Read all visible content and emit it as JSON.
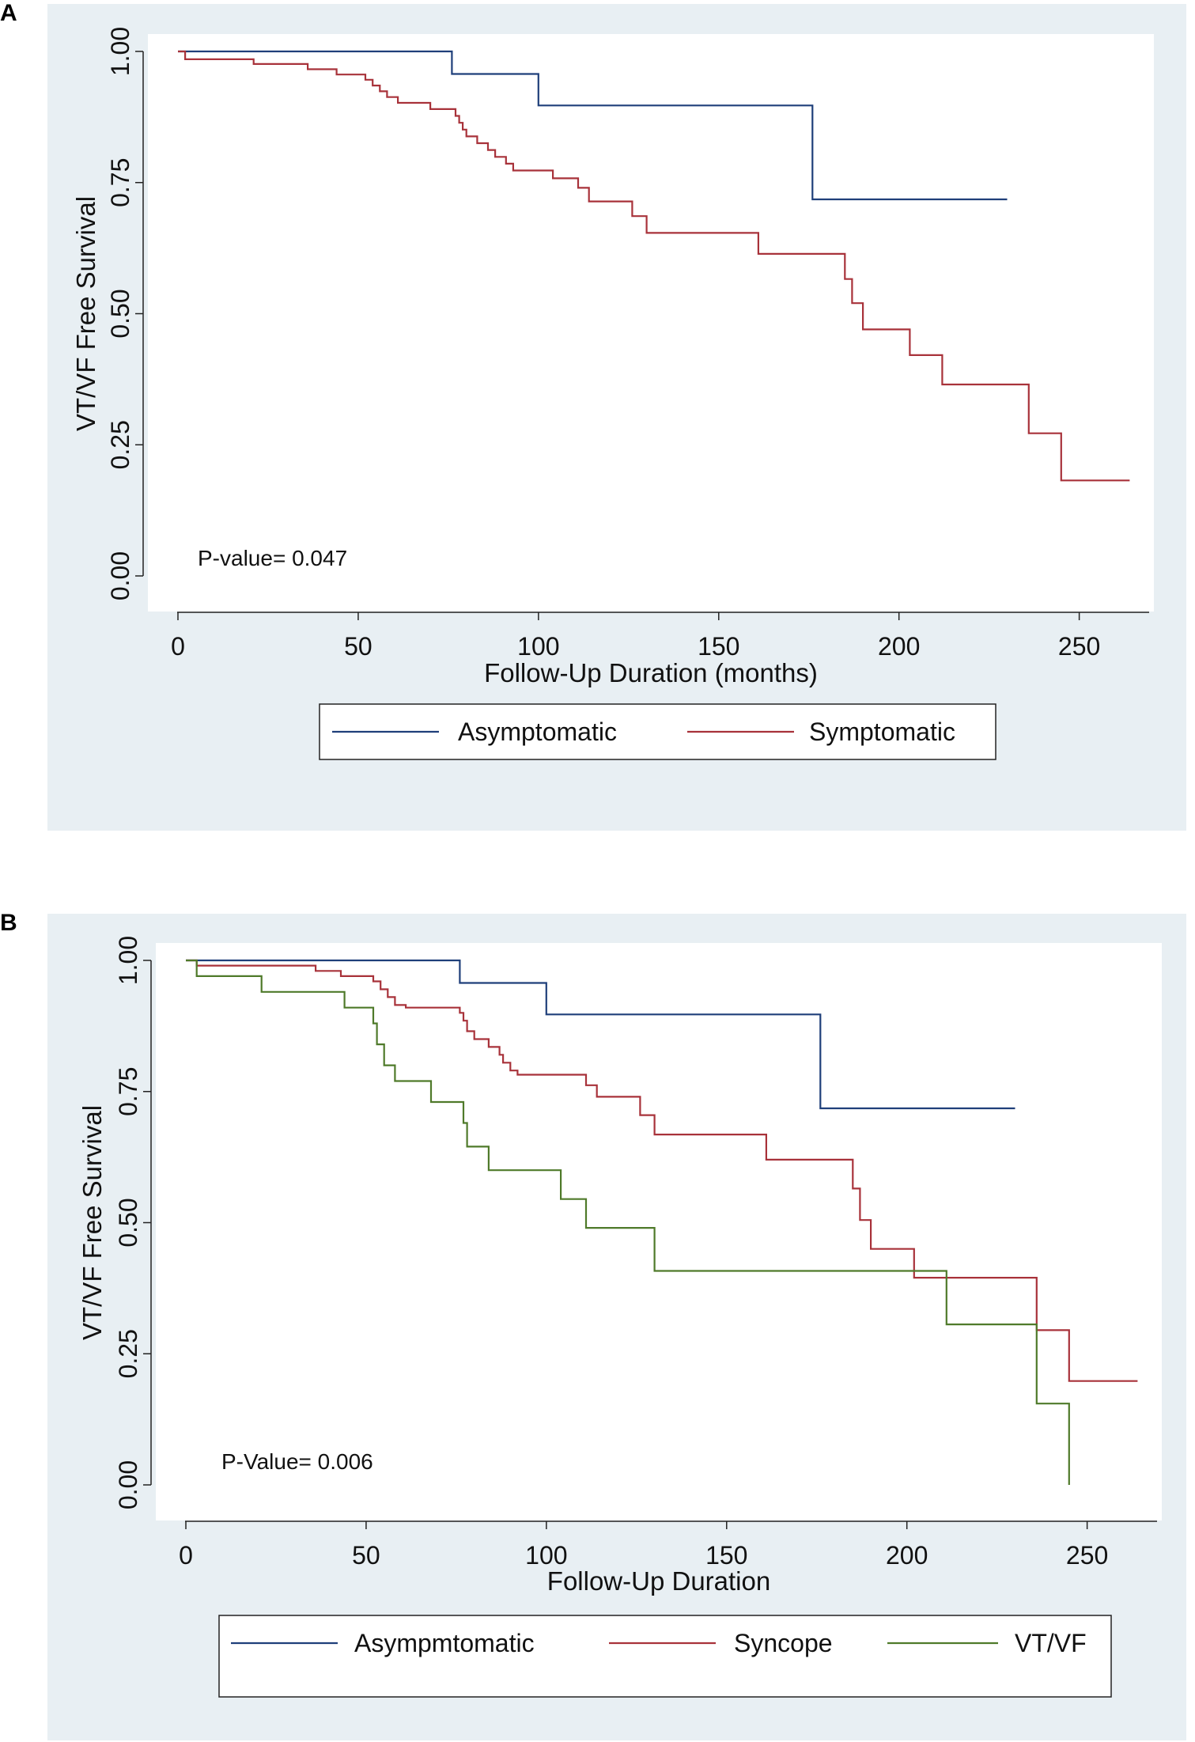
{
  "figure": {
    "panel_a_label": "A",
    "panel_b_label": "B"
  },
  "chart_data": [
    {
      "type": "line",
      "step": true,
      "panel": "A",
      "title": "",
      "xlabel": "Follow-Up Duration (months)",
      "ylabel": "VT/VF Free Survival",
      "xlim": [
        0,
        265
      ],
      "ylim": [
        0,
        1
      ],
      "xticks": [
        0,
        50,
        100,
        150,
        200,
        250
      ],
      "xtick_labels": [
        "0",
        "50",
        "100",
        "150",
        "200",
        "250"
      ],
      "yticks": [
        0,
        0.25,
        0.5,
        0.75,
        1
      ],
      "ytick_labels": [
        "0.00",
        "0.25",
        "0.50",
        "0.75",
        "1.00"
      ],
      "annotation": "P-value= 0.047",
      "legend_placement": "bottom",
      "colors": {
        "plot_bg": "#ffffff",
        "outer_bg": "#e8eff3"
      },
      "series": [
        {
          "name": "Asymptomatic",
          "color": "#1f3f7a",
          "points": [
            [
              0,
              1.0
            ],
            [
              76,
              1.0
            ],
            [
              76,
              0.957
            ],
            [
              100,
              0.957
            ],
            [
              100,
              0.897
            ],
            [
              176,
              0.897
            ],
            [
              176,
              0.718
            ],
            [
              230,
              0.718
            ]
          ]
        },
        {
          "name": "Symptomatic",
          "color": "#a8323a",
          "points": [
            [
              0,
              1.0
            ],
            [
              2,
              1.0
            ],
            [
              2,
              0.985
            ],
            [
              21,
              0.985
            ],
            [
              21,
              0.976
            ],
            [
              36,
              0.976
            ],
            [
              36,
              0.966
            ],
            [
              44,
              0.966
            ],
            [
              44,
              0.956
            ],
            [
              52,
              0.956
            ],
            [
              52,
              0.946
            ],
            [
              54,
              0.946
            ],
            [
              54,
              0.935
            ],
            [
              56,
              0.935
            ],
            [
              56,
              0.924
            ],
            [
              58,
              0.924
            ],
            [
              58,
              0.913
            ],
            [
              61,
              0.913
            ],
            [
              61,
              0.902
            ],
            [
              70,
              0.902
            ],
            [
              70,
              0.89
            ],
            [
              77,
              0.89
            ],
            [
              77,
              0.877
            ],
            [
              78,
              0.877
            ],
            [
              78,
              0.864
            ],
            [
              79,
              0.864
            ],
            [
              79,
              0.851
            ],
            [
              80,
              0.851
            ],
            [
              80,
              0.838
            ],
            [
              83,
              0.838
            ],
            [
              83,
              0.825
            ],
            [
              86,
              0.825
            ],
            [
              86,
              0.812
            ],
            [
              88,
              0.812
            ],
            [
              88,
              0.799
            ],
            [
              91,
              0.799
            ],
            [
              91,
              0.786
            ],
            [
              93,
              0.786
            ],
            [
              93,
              0.773
            ],
            [
              104,
              0.773
            ],
            [
              104,
              0.758
            ],
            [
              111,
              0.758
            ],
            [
              111,
              0.74
            ],
            [
              114,
              0.74
            ],
            [
              114,
              0.714
            ],
            [
              126,
              0.714
            ],
            [
              126,
              0.686
            ],
            [
              130,
              0.686
            ],
            [
              130,
              0.654
            ],
            [
              161,
              0.654
            ],
            [
              161,
              0.614
            ],
            [
              185,
              0.614
            ],
            [
              185,
              0.566
            ],
            [
              187,
              0.566
            ],
            [
              187,
              0.52
            ],
            [
              190,
              0.52
            ],
            [
              190,
              0.47
            ],
            [
              203,
              0.47
            ],
            [
              203,
              0.421
            ],
            [
              212,
              0.421
            ],
            [
              212,
              0.365
            ],
            [
              236,
              0.365
            ],
            [
              236,
              0.272
            ],
            [
              245,
              0.272
            ],
            [
              245,
              0.182
            ],
            [
              264,
              0.182
            ]
          ]
        }
      ]
    },
    {
      "type": "line",
      "step": true,
      "panel": "B",
      "title": "",
      "xlabel": "Follow-Up Duration",
      "ylabel": "VT/VF Free Survival",
      "xlim": [
        0,
        265
      ],
      "ylim": [
        0,
        1
      ],
      "xticks": [
        0,
        50,
        100,
        150,
        200,
        250
      ],
      "xtick_labels": [
        "0",
        "50",
        "100",
        "150",
        "200",
        "250"
      ],
      "yticks": [
        0,
        0.25,
        0.5,
        0.75,
        1
      ],
      "ytick_labels": [
        "0.00",
        "0.25",
        "0.50",
        "0.75",
        "1.00"
      ],
      "annotation": "P-Value= 0.006",
      "legend_placement": "bottom",
      "colors": {
        "plot_bg": "#ffffff",
        "outer_bg": "#e8eff3"
      },
      "series": [
        {
          "name": "Asympmtomatic",
          "color": "#1f3f7a",
          "points": [
            [
              0,
              1.0
            ],
            [
              76,
              1.0
            ],
            [
              76,
              0.957
            ],
            [
              100,
              0.957
            ],
            [
              100,
              0.897
            ],
            [
              176,
              0.897
            ],
            [
              176,
              0.718
            ],
            [
              230,
              0.718
            ]
          ]
        },
        {
          "name": "Syncope",
          "color": "#a8323a",
          "points": [
            [
              0,
              1.0
            ],
            [
              3,
              1.0
            ],
            [
              3,
              0.99
            ],
            [
              36,
              0.99
            ],
            [
              36,
              0.98
            ],
            [
              43,
              0.98
            ],
            [
              43,
              0.97
            ],
            [
              52,
              0.97
            ],
            [
              52,
              0.96
            ],
            [
              54,
              0.96
            ],
            [
              54,
              0.945
            ],
            [
              56,
              0.945
            ],
            [
              56,
              0.93
            ],
            [
              58,
              0.93
            ],
            [
              58,
              0.915
            ],
            [
              61,
              0.915
            ],
            [
              61,
              0.91
            ],
            [
              76,
              0.91
            ],
            [
              76,
              0.9
            ],
            [
              77,
              0.9
            ],
            [
              77,
              0.885
            ],
            [
              78,
              0.885
            ],
            [
              78,
              0.865
            ],
            [
              80,
              0.865
            ],
            [
              80,
              0.85
            ],
            [
              84,
              0.85
            ],
            [
              84,
              0.835
            ],
            [
              87,
              0.835
            ],
            [
              87,
              0.82
            ],
            [
              88,
              0.82
            ],
            [
              88,
              0.805
            ],
            [
              90,
              0.805
            ],
            [
              90,
              0.79
            ],
            [
              92,
              0.79
            ],
            [
              92,
              0.782
            ],
            [
              111,
              0.782
            ],
            [
              111,
              0.762
            ],
            [
              114,
              0.762
            ],
            [
              114,
              0.74
            ],
            [
              126,
              0.74
            ],
            [
              126,
              0.705
            ],
            [
              130,
              0.705
            ],
            [
              130,
              0.668
            ],
            [
              161,
              0.668
            ],
            [
              161,
              0.62
            ],
            [
              185,
              0.62
            ],
            [
              185,
              0.565
            ],
            [
              187,
              0.565
            ],
            [
              187,
              0.505
            ],
            [
              190,
              0.505
            ],
            [
              190,
              0.45
            ],
            [
              202,
              0.45
            ],
            [
              202,
              0.395
            ],
            [
              236,
              0.395
            ],
            [
              236,
              0.295
            ],
            [
              245,
              0.295
            ],
            [
              245,
              0.198
            ],
            [
              264,
              0.198
            ]
          ]
        },
        {
          "name": "VT/VF",
          "color": "#4f7a2a",
          "points": [
            [
              0,
              1.0
            ],
            [
              3,
              1.0
            ],
            [
              3,
              0.97
            ],
            [
              21,
              0.97
            ],
            [
              21,
              0.94
            ],
            [
              44,
              0.94
            ],
            [
              44,
              0.91
            ],
            [
              52,
              0.91
            ],
            [
              52,
              0.88
            ],
            [
              53,
              0.88
            ],
            [
              53,
              0.84
            ],
            [
              55,
              0.84
            ],
            [
              55,
              0.8
            ],
            [
              58,
              0.8
            ],
            [
              58,
              0.77
            ],
            [
              68,
              0.77
            ],
            [
              68,
              0.73
            ],
            [
              77,
              0.73
            ],
            [
              77,
              0.69
            ],
            [
              78,
              0.69
            ],
            [
              78,
              0.645
            ],
            [
              84,
              0.645
            ],
            [
              84,
              0.6
            ],
            [
              104,
              0.6
            ],
            [
              104,
              0.545
            ],
            [
              111,
              0.545
            ],
            [
              111,
              0.49
            ],
            [
              130,
              0.49
            ],
            [
              130,
              0.408
            ],
            [
              211,
              0.408
            ],
            [
              211,
              0.306
            ],
            [
              236,
              0.306
            ],
            [
              236,
              0.155
            ],
            [
              245,
              0.155
            ],
            [
              245,
              0.0
            ]
          ]
        }
      ]
    }
  ]
}
